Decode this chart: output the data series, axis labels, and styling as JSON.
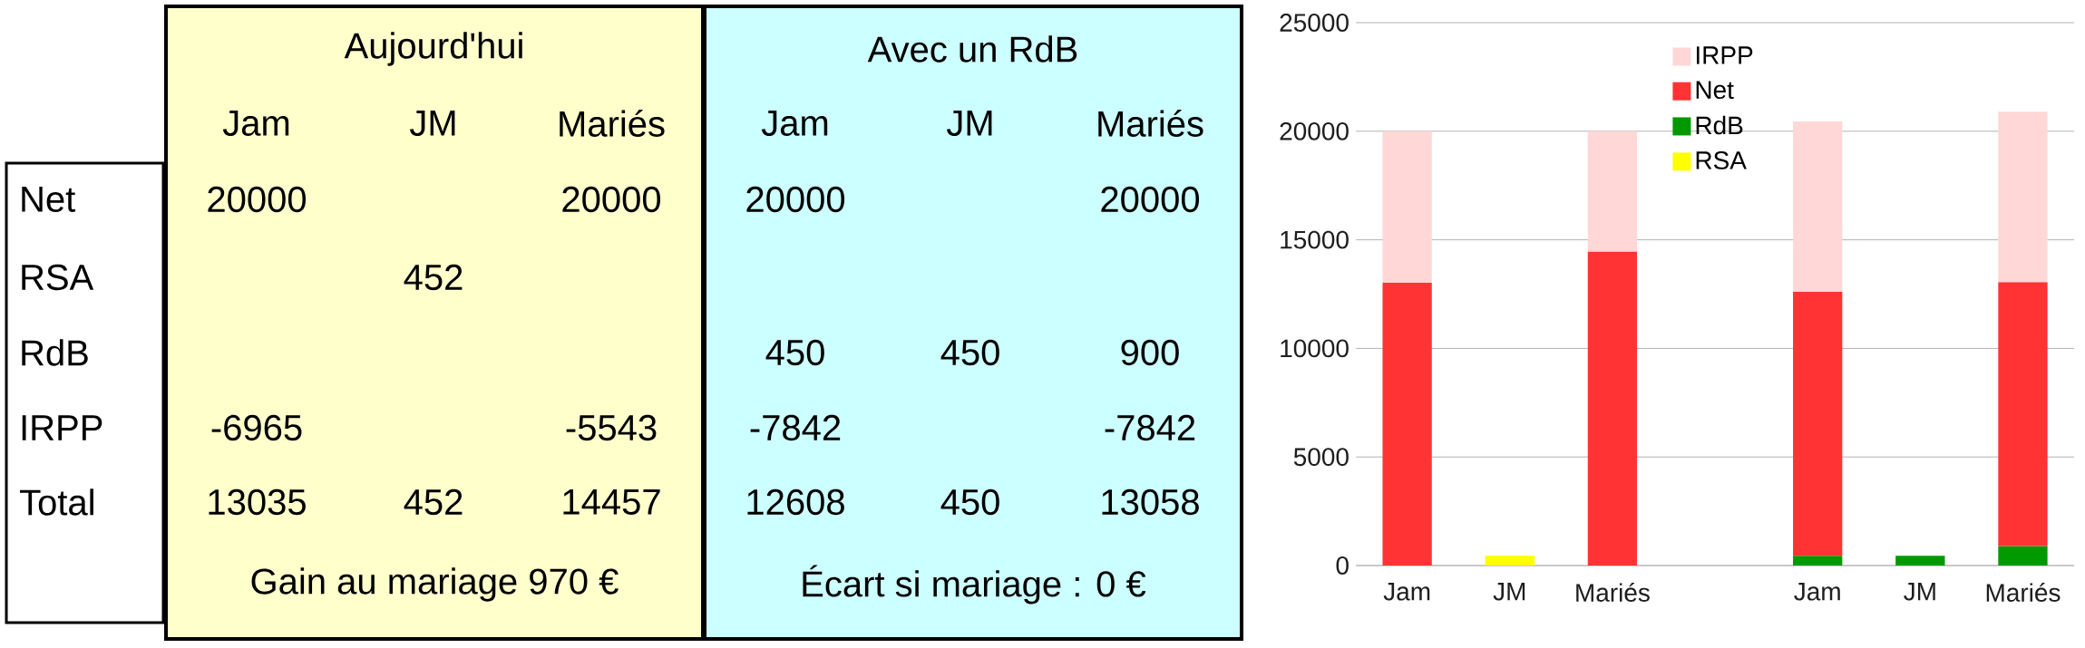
{
  "chart_data": [
    {
      "type": "other",
      "categories": [
        "Jam",
        "JM",
        "Mariés",
        "Jam",
        "JM",
        "Mariés"
      ],
      "y_categories": [
        "Net",
        "RSA",
        "RdB",
        "IRPP",
        "Total"
      ],
      "cell_labels": [
        [
          "20000",
          null,
          "20000",
          "20000",
          null,
          "20000"
        ],
        [
          null,
          "452",
          null,
          null,
          null,
          null
        ],
        [
          null,
          null,
          null,
          "450",
          "450",
          "900"
        ],
        [
          "-6965",
          null,
          "-5543",
          "-7842",
          null,
          "-7842"
        ],
        [
          "13035",
          "452",
          "14457",
          "12608",
          "450",
          "13058"
        ]
      ],
      "annotations": [
        "Aujourd'hui",
        "Avec un RdB",
        "Gain au mariage 970 €",
        "Écart si mariage : 0 €"
      ]
    },
    {
      "type": "bar",
      "stacked": true,
      "categories": [
        "Jam",
        "JM",
        "Mariés",
        null,
        "Jam",
        "JM",
        "Mariés"
      ],
      "series": [
        {
          "name": "RSA",
          "color": "#ffff00",
          "values": [
            null,
            452,
            null,
            null,
            null,
            null,
            null
          ]
        },
        {
          "name": "RdB",
          "color": "#009900",
          "values": [
            null,
            null,
            null,
            null,
            450,
            450,
            900
          ]
        },
        {
          "name": "Net",
          "color": "#ff3333",
          "values": [
            13035,
            null,
            14457,
            null,
            12158,
            null,
            12158
          ]
        },
        {
          "name": "IRPP",
          "color": "#ffd7d7",
          "values": [
            6965,
            null,
            5543,
            null,
            7842,
            null,
            7842
          ]
        }
      ],
      "ylim": [
        0,
        25000
      ],
      "yticks": [
        0,
        5000,
        10000,
        15000,
        20000,
        25000
      ],
      "grid": "y",
      "legend": "top"
    }
  ]
}
